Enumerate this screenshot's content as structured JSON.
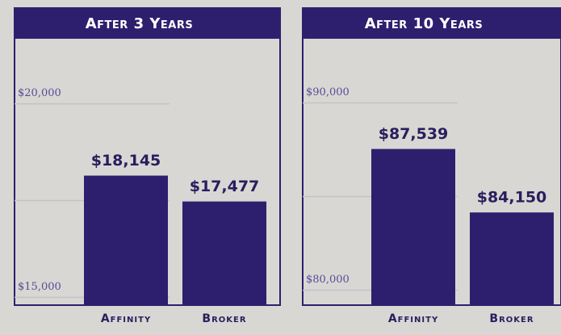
{
  "chart_data": [
    {
      "type": "bar",
      "title": "After 3 Years",
      "categories": [
        "Affinity",
        "Broker"
      ],
      "values": [
        18145,
        17477
      ],
      "value_labels": [
        "$18,145",
        "$17,477"
      ],
      "color": "#2e1f6e",
      "ylim": [
        14800,
        20700
      ],
      "yticks": [
        {
          "value": 15000,
          "label": "$15,000"
        },
        {
          "value": 17500,
          "label": null
        },
        {
          "value": 20000,
          "label": "$20,000"
        }
      ],
      "grid": true
    },
    {
      "type": "bar",
      "title": "After 10 Years",
      "categories": [
        "Affinity",
        "Broker"
      ],
      "values": [
        87539,
        84150
      ],
      "value_labels": [
        "$87,539",
        "$84,150"
      ],
      "color": "#2e1f6e",
      "ylim": [
        79200,
        91400
      ],
      "yticks": [
        {
          "value": 80000,
          "label": "$80,000"
        },
        {
          "value": 85000,
          "label": null
        },
        {
          "value": 90000,
          "label": "$90,000"
        }
      ],
      "grid": true
    }
  ]
}
